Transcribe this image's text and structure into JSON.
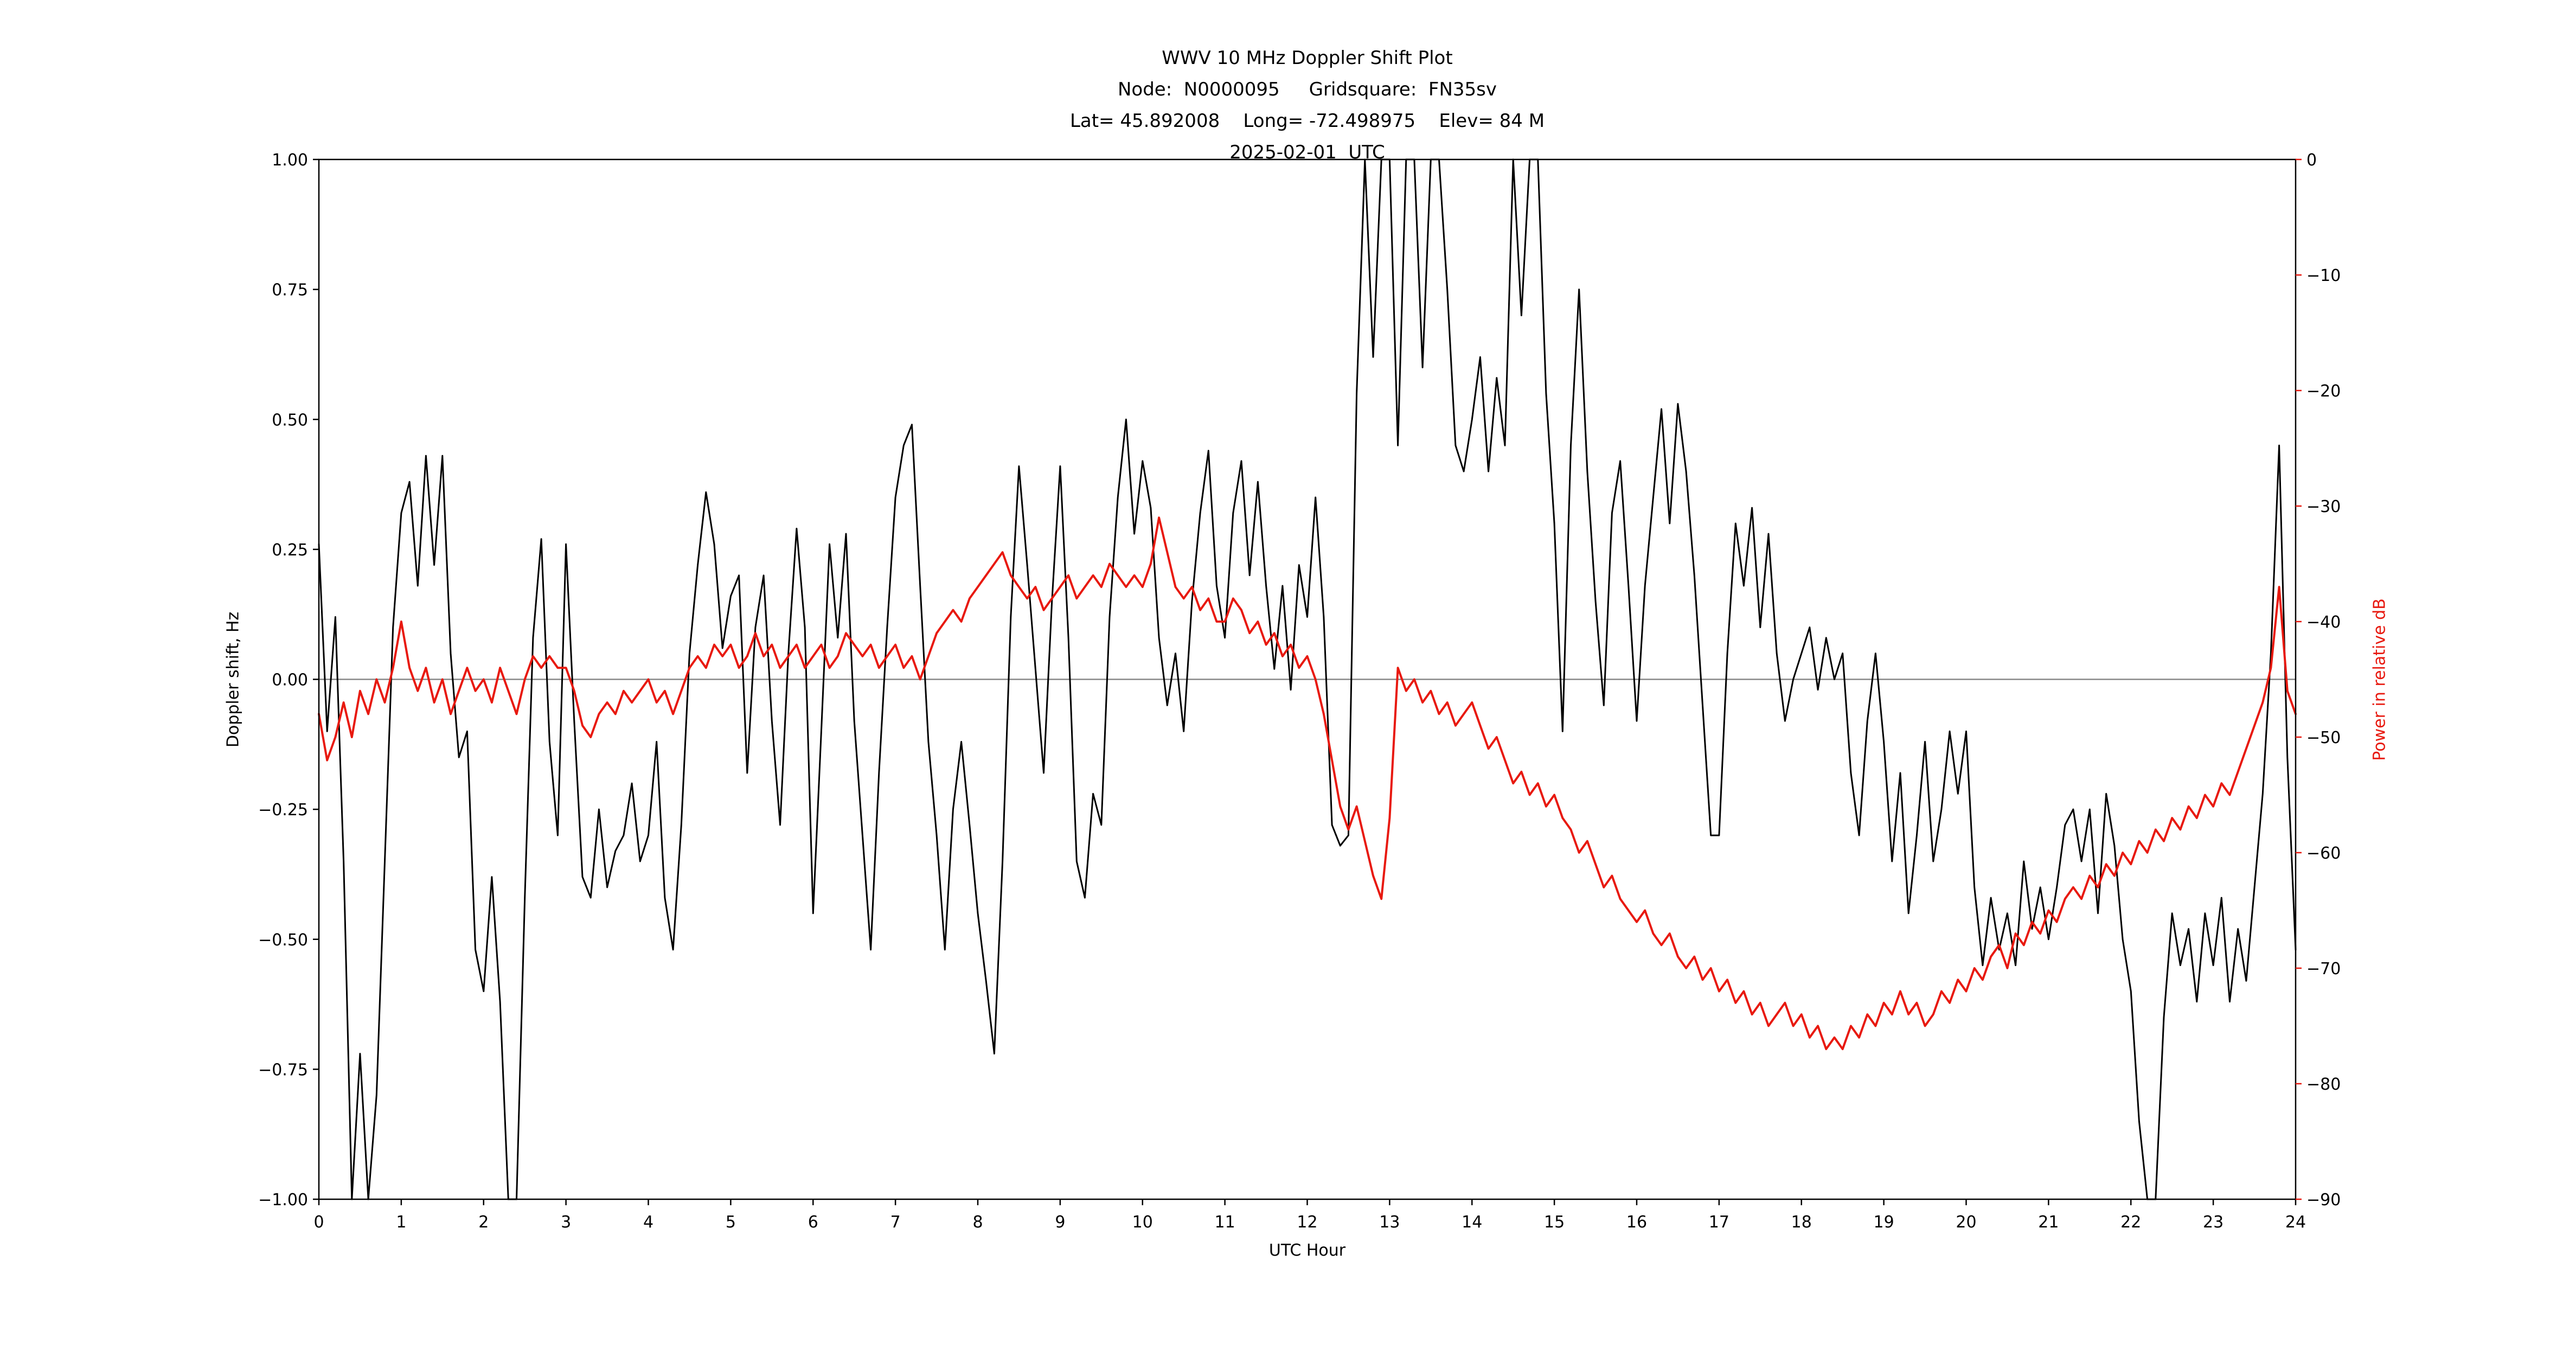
{
  "title": {
    "line1": "WWV 10 MHz Doppler Shift Plot",
    "line2": "Node:  N0000095     Gridsquare:  FN35sv",
    "line3": "Lat= 45.892008    Long= -72.498975    Elev= 84 M",
    "line4": "2025-02-01  UTC"
  },
  "chart_data": {
    "type": "line",
    "title": "WWV 10 MHz Doppler Shift Plot",
    "xlabel": "UTC Hour",
    "ylabel_left": "Doppler shift, Hz",
    "ylabel_right": "Power in relative dB",
    "x_range": [
      0,
      24
    ],
    "y_left_range": [
      -1.0,
      1.0
    ],
    "y_right_range": [
      -90,
      0
    ],
    "grid": "off",
    "zero_line_left": 0.0,
    "colors": {
      "doppler_series": "#000000",
      "power_series": "#e8190f",
      "zero_line": "#888888",
      "axis": "#000000",
      "right_axis_text": "#e8190f",
      "background": "#ffffff"
    },
    "x_ticks": {
      "values": [
        0,
        1,
        2,
        3,
        4,
        5,
        6,
        7,
        8,
        9,
        10,
        11,
        12,
        13,
        14,
        15,
        16,
        17,
        18,
        19,
        20,
        21,
        22,
        23,
        24
      ],
      "labels": [
        "0",
        "1",
        "2",
        "3",
        "4",
        "5",
        "6",
        "7",
        "8",
        "9",
        "10",
        "11",
        "12",
        "13",
        "14",
        "15",
        "16",
        "17",
        "18",
        "19",
        "20",
        "21",
        "22",
        "23",
        "24"
      ]
    },
    "y_left_ticks": {
      "values": [
        1.0,
        0.75,
        0.5,
        0.25,
        0.0,
        -0.25,
        -0.5,
        -0.75,
        -1.0
      ],
      "labels": [
        "1.00",
        "0.75",
        "0.50",
        "0.25",
        "0.00",
        "−0.25",
        "−0.50",
        "−0.75",
        "−1.00"
      ]
    },
    "y_right_ticks": {
      "values": [
        0,
        -10,
        -20,
        -30,
        -40,
        -50,
        -60,
        -70,
        -80,
        -90
      ],
      "labels": [
        "0",
        "−10",
        "−20",
        "−30",
        "−40",
        "−50",
        "−60",
        "−70",
        "−80",
        "−90"
      ]
    },
    "series": [
      {
        "name": "Doppler shift, Hz",
        "axis": "left",
        "color": "#000000",
        "line_width": 3,
        "x_start": 0,
        "x_step": 0.1,
        "values": [
          0.26,
          -0.1,
          0.12,
          -0.35,
          -1.0,
          -0.72,
          -1.0,
          -0.8,
          -0.35,
          0.1,
          0.32,
          0.38,
          0.18,
          0.43,
          0.22,
          0.43,
          0.05,
          -0.15,
          -0.1,
          -0.52,
          -0.6,
          -0.38,
          -0.62,
          -1.0,
          -1.0,
          -0.42,
          0.08,
          0.27,
          -0.12,
          -0.3,
          0.26,
          -0.08,
          -0.38,
          -0.42,
          -0.25,
          -0.4,
          -0.33,
          -0.3,
          -0.2,
          -0.35,
          -0.3,
          -0.12,
          -0.42,
          -0.52,
          -0.28,
          0.05,
          0.22,
          0.36,
          0.26,
          0.06,
          0.16,
          0.2,
          -0.18,
          0.1,
          0.2,
          -0.08,
          -0.28,
          0.05,
          0.29,
          0.1,
          -0.45,
          -0.1,
          0.26,
          0.08,
          0.28,
          -0.08,
          -0.3,
          -0.52,
          -0.18,
          0.1,
          0.35,
          0.45,
          0.49,
          0.18,
          -0.12,
          -0.3,
          -0.52,
          -0.25,
          -0.12,
          -0.28,
          -0.45,
          -0.58,
          -0.72,
          -0.35,
          0.12,
          0.41,
          0.22,
          0.02,
          -0.18,
          0.15,
          0.41,
          0.08,
          -0.35,
          -0.42,
          -0.22,
          -0.28,
          0.12,
          0.35,
          0.5,
          0.28,
          0.42,
          0.33,
          0.08,
          -0.05,
          0.05,
          -0.1,
          0.15,
          0.32,
          0.44,
          0.18,
          0.08,
          0.32,
          0.42,
          0.2,
          0.38,
          0.18,
          0.02,
          0.18,
          -0.02,
          0.22,
          0.12,
          0.35,
          0.12,
          -0.28,
          -0.32,
          -0.3,
          0.55,
          1.0,
          0.62,
          1.0,
          1.0,
          0.45,
          1.0,
          1.0,
          0.6,
          1.0,
          1.0,
          0.75,
          0.45,
          0.4,
          0.5,
          0.62,
          0.4,
          0.58,
          0.45,
          1.0,
          0.7,
          1.0,
          1.0,
          0.55,
          0.3,
          -0.1,
          0.45,
          0.75,
          0.4,
          0.15,
          -0.05,
          0.32,
          0.42,
          0.18,
          -0.08,
          0.18,
          0.35,
          0.52,
          0.3,
          0.53,
          0.4,
          0.2,
          -0.05,
          -0.3,
          -0.3,
          0.05,
          0.3,
          0.18,
          0.33,
          0.1,
          0.28,
          0.05,
          -0.08,
          0.0,
          0.05,
          0.1,
          -0.02,
          0.08,
          0.0,
          0.05,
          -0.18,
          -0.3,
          -0.08,
          0.05,
          -0.12,
          -0.35,
          -0.18,
          -0.45,
          -0.3,
          -0.12,
          -0.35,
          -0.25,
          -0.1,
          -0.22,
          -0.1,
          -0.4,
          -0.55,
          -0.42,
          -0.52,
          -0.45,
          -0.55,
          -0.35,
          -0.48,
          -0.4,
          -0.5,
          -0.4,
          -0.28,
          -0.25,
          -0.35,
          -0.25,
          -0.45,
          -0.22,
          -0.32,
          -0.5,
          -0.6,
          -0.85,
          -1.0,
          -1.0,
          -0.65,
          -0.45,
          -0.55,
          -0.48,
          -0.62,
          -0.45,
          -0.55,
          -0.42,
          -0.62,
          -0.48,
          -0.58,
          -0.4,
          -0.22,
          0.05,
          0.45,
          -0.15,
          -0.52
        ]
      },
      {
        "name": "Power in relative dB",
        "axis": "right",
        "color": "#e8190f",
        "line_width": 4,
        "x_start": 0,
        "x_step": 0.1,
        "values": [
          -48,
          -52,
          -50,
          -47,
          -50,
          -46,
          -48,
          -45,
          -47,
          -44,
          -40,
          -44,
          -46,
          -44,
          -47,
          -45,
          -48,
          -46,
          -44,
          -46,
          -45,
          -47,
          -44,
          -46,
          -48,
          -45,
          -43,
          -44,
          -43,
          -44,
          -44,
          -46,
          -49,
          -50,
          -48,
          -47,
          -48,
          -46,
          -47,
          -46,
          -45,
          -47,
          -46,
          -48,
          -46,
          -44,
          -43,
          -44,
          -42,
          -43,
          -42,
          -44,
          -43,
          -41,
          -43,
          -42,
          -44,
          -43,
          -42,
          -44,
          -43,
          -42,
          -44,
          -43,
          -41,
          -42,
          -43,
          -42,
          -44,
          -43,
          -42,
          -44,
          -43,
          -45,
          -43,
          -41,
          -40,
          -39,
          -40,
          -38,
          -37,
          -36,
          -35,
          -34,
          -36,
          -37,
          -38,
          -37,
          -39,
          -38,
          -37,
          -36,
          -38,
          -37,
          -36,
          -37,
          -35,
          -36,
          -37,
          -36,
          -37,
          -35,
          -31,
          -34,
          -37,
          -38,
          -37,
          -39,
          -38,
          -40,
          -40,
          -38,
          -39,
          -41,
          -40,
          -42,
          -41,
          -43,
          -42,
          -44,
          -43,
          -45,
          -48,
          -52,
          -56,
          -58,
          -56,
          -59,
          -62,
          -64,
          -57,
          -44,
          -46,
          -45,
          -47,
          -46,
          -48,
          -47,
          -49,
          -48,
          -47,
          -49,
          -51,
          -50,
          -52,
          -54,
          -53,
          -55,
          -54,
          -56,
          -55,
          -57,
          -58,
          -60,
          -59,
          -61,
          -63,
          -62,
          -64,
          -65,
          -66,
          -65,
          -67,
          -68,
          -67,
          -69,
          -70,
          -69,
          -71,
          -70,
          -72,
          -71,
          -73,
          -72,
          -74,
          -73,
          -75,
          -74,
          -73,
          -75,
          -74,
          -76,
          -75,
          -77,
          -76,
          -77,
          -75,
          -76,
          -74,
          -75,
          -73,
          -74,
          -72,
          -74,
          -73,
          -75,
          -74,
          -72,
          -73,
          -71,
          -72,
          -70,
          -71,
          -69,
          -68,
          -70,
          -67,
          -68,
          -66,
          -67,
          -65,
          -66,
          -64,
          -63,
          -64,
          -62,
          -63,
          -61,
          -62,
          -60,
          -61,
          -59,
          -60,
          -58,
          -59,
          -57,
          -58,
          -56,
          -57,
          -55,
          -56,
          -54,
          -55,
          -53,
          -51,
          -49,
          -47,
          -44,
          -37,
          -46,
          -48
        ]
      }
    ]
  }
}
